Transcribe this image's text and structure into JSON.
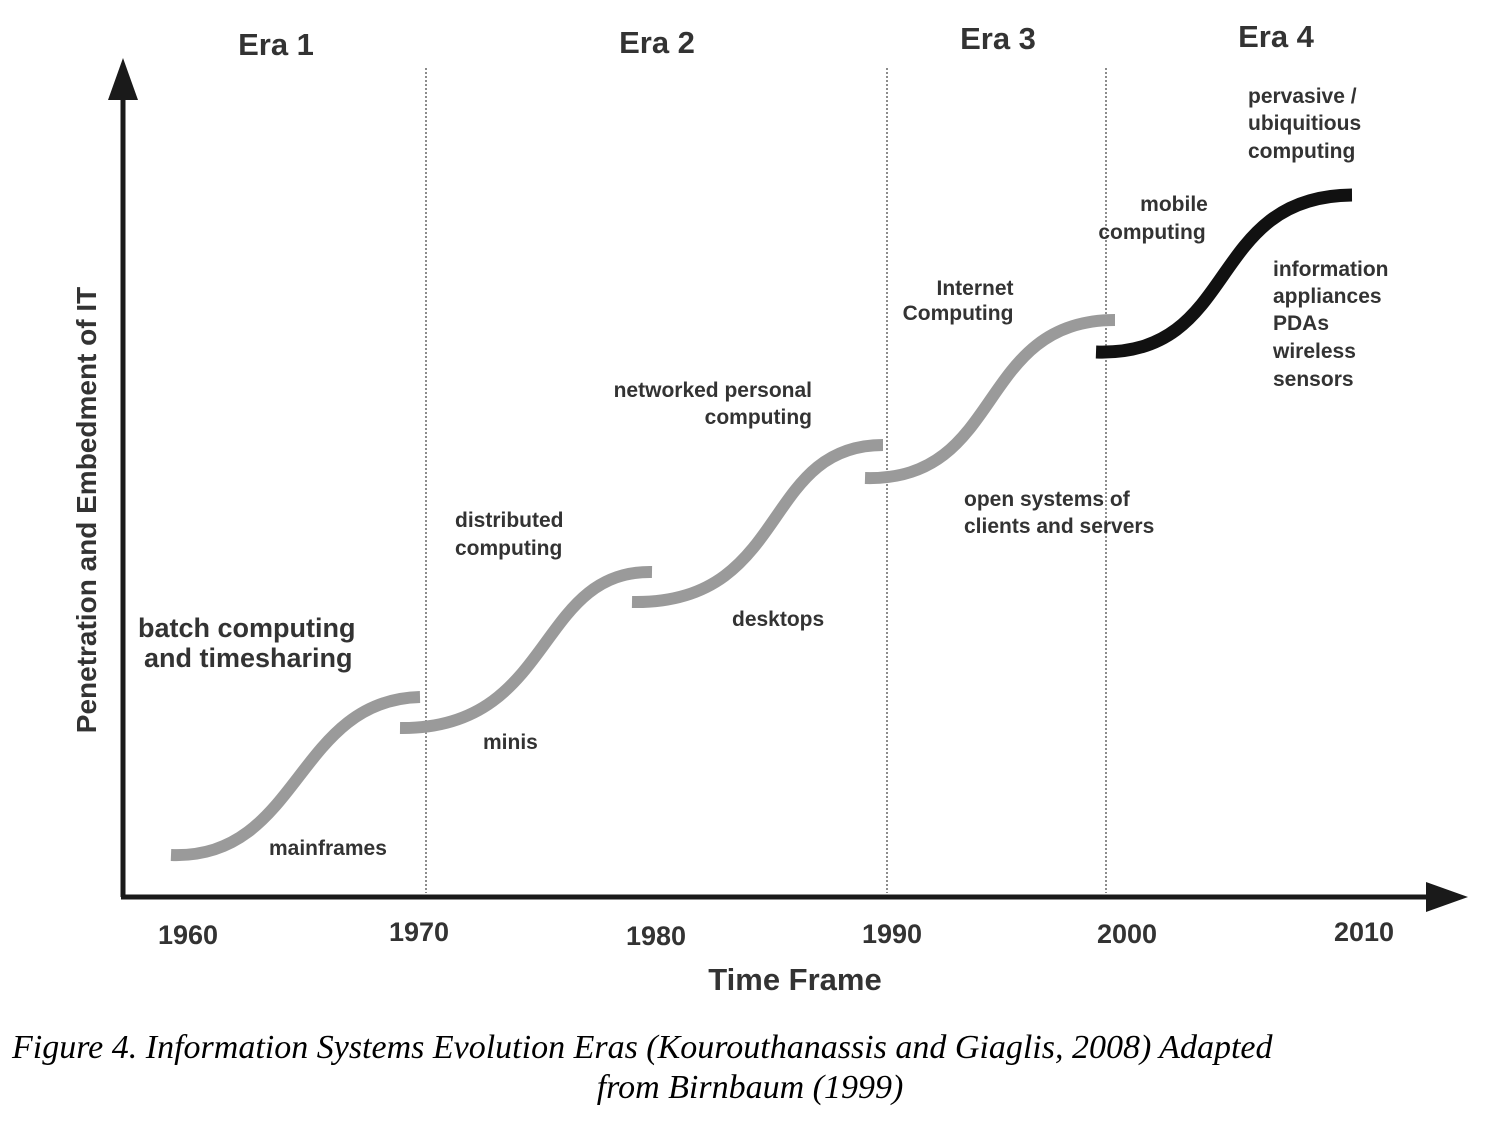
{
  "diagram": {
    "eras": [
      "Era 1",
      "Era 2",
      "Era 3",
      "Era 4"
    ],
    "x_ticks": [
      "1960",
      "1970",
      "1980",
      "1990",
      "2000",
      "2010"
    ],
    "x_axis_title": "Time Frame",
    "y_axis_title": "Penetration and Embedment of IT",
    "stages": [
      {
        "name": "mainframes",
        "label_lines": [
          "mainframes"
        ]
      },
      {
        "name": "batch",
        "label_lines": [
          "batch computing",
          "and timesharing"
        ]
      },
      {
        "name": "minis",
        "label_lines": [
          "minis"
        ]
      },
      {
        "name": "distributed",
        "label_lines": [
          "distributed",
          "computing"
        ]
      },
      {
        "name": "desktops",
        "label_lines": [
          "desktops"
        ]
      },
      {
        "name": "networked",
        "label_lines": [
          "networked personal",
          "computing"
        ]
      },
      {
        "name": "open-systems",
        "label_lines": [
          "open systems of",
          "clients and servers"
        ]
      },
      {
        "name": "internet",
        "label_lines": [
          "Internet",
          "Computing"
        ]
      },
      {
        "name": "mobile",
        "label_lines": [
          "mobile",
          "computing"
        ]
      },
      {
        "name": "appliances",
        "label_lines": [
          "information",
          "appliances",
          "PDAs",
          "wireless",
          "sensors"
        ]
      },
      {
        "name": "pervasive",
        "label_lines": [
          "pervasive /",
          "ubiquitious",
          "computing"
        ]
      }
    ],
    "colors": {
      "curve": "#9a9a9a",
      "curve_current": "#111111",
      "axis": "#1a1a1a",
      "divider": "#666666"
    }
  },
  "caption": {
    "line1": "Figure 4. Information Systems Evolution Eras (Kourouthanassis and Giaglis, 2008) Adapted",
    "line2": "from Birnbaum (1999)"
  }
}
